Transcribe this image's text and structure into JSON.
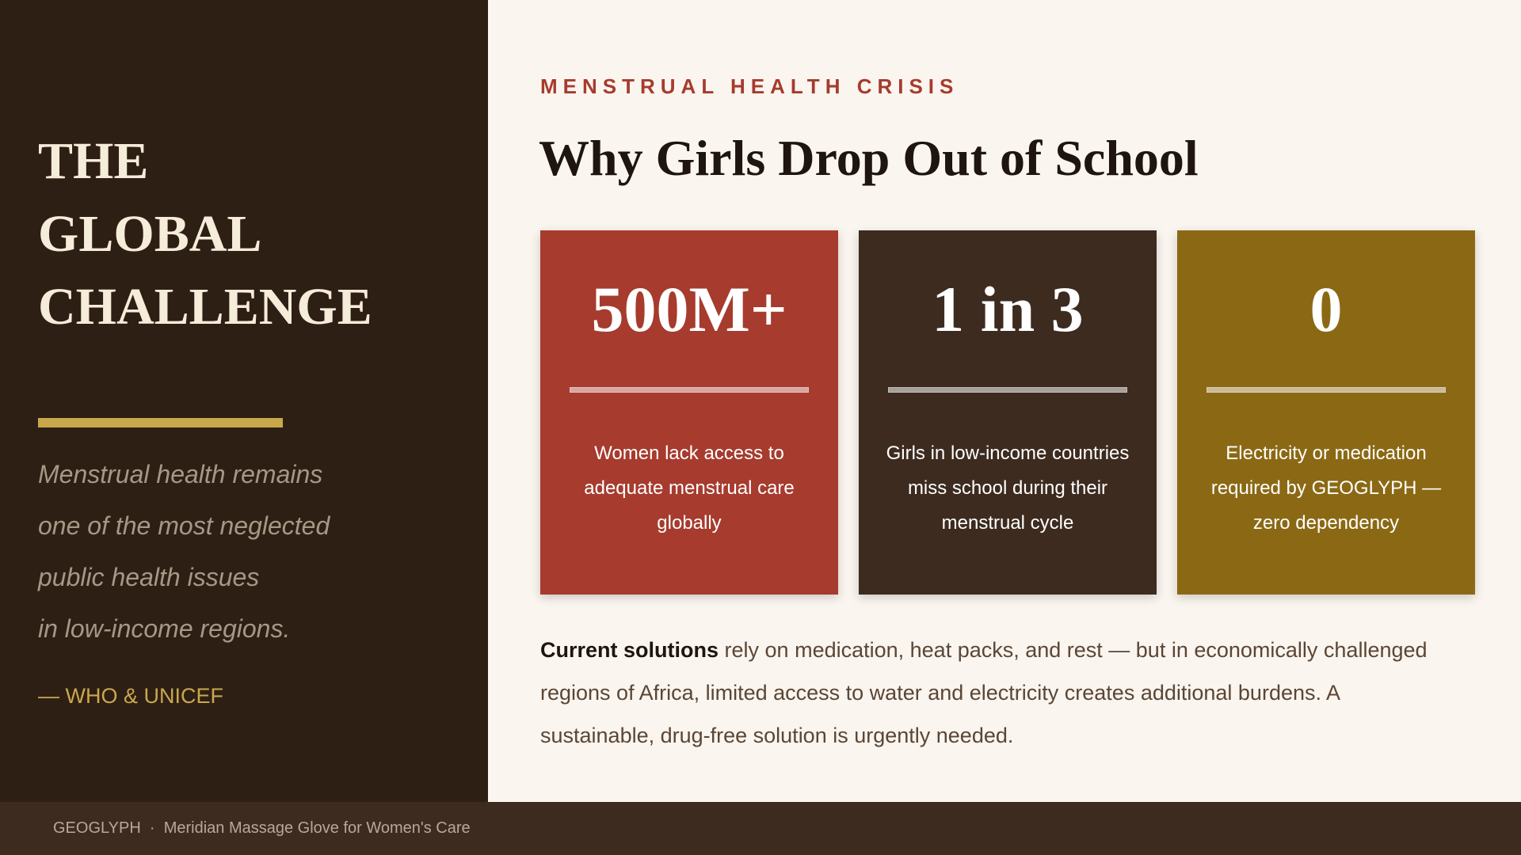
{
  "sidebar": {
    "title_lines": [
      "THE",
      "GLOBAL",
      "CHALLENGE"
    ],
    "quote_lines": [
      "Menstrual health remains",
      "one of the most neglected",
      "public health issues",
      "in low-income regions."
    ],
    "attribution": "— WHO & UNICEF"
  },
  "main": {
    "eyebrow": "MENSTRUAL HEALTH CRISIS",
    "heading": "Why Girls Drop Out of School",
    "cards": [
      {
        "value": "500M+",
        "description": "Women lack access to adequate menstrual care globally"
      },
      {
        "value": "1 in 3",
        "description": "Girls in low-income countries miss school during their menstrual cycle"
      },
      {
        "value": "0",
        "description": "Electricity or medication required by GEOGLYPH — zero dependency"
      }
    ],
    "paragraph": {
      "lead": "Current solutions",
      "text": "rely on medication, heat packs, and rest — but in economically challenged regions of Africa, limited access to water and electricity creates additional burdens. A sustainable, drug-free solution is urgently needed."
    }
  },
  "footer": {
    "brand": "GEOGLYPH",
    "separator": "·",
    "tagline": "Meridian Massage Glove for Women's Care"
  }
}
